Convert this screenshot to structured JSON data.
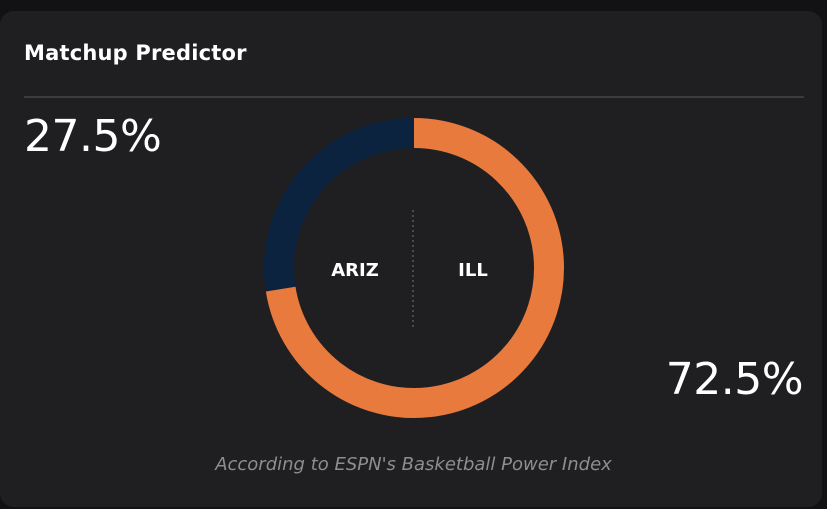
{
  "card": {
    "title": "Matchup Predictor",
    "footer": "According to ESPN's Basketball Power Index"
  },
  "teams": [
    {
      "abbr": "ARIZ",
      "win_pct": 27.5,
      "pct_label": "27.5%",
      "color": "#0c2340"
    },
    {
      "abbr": "ILL",
      "win_pct": 72.5,
      "pct_label": "72.5%",
      "color": "#e87a3e"
    }
  ],
  "chart_data": {
    "type": "pie",
    "categories": [
      "ARIZ",
      "ILL"
    ],
    "values": [
      27.5,
      72.5
    ],
    "colors": [
      "#0c2340",
      "#e87a3e"
    ]
  }
}
